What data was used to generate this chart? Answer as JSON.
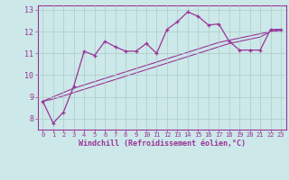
{
  "x_data": [
    0,
    1,
    2,
    3,
    4,
    5,
    6,
    7,
    8,
    9,
    10,
    11,
    12,
    13,
    14,
    15,
    16,
    17,
    18,
    19,
    20,
    21,
    22,
    23
  ],
  "y_main": [
    8.8,
    7.8,
    8.3,
    9.5,
    11.1,
    10.9,
    11.55,
    11.3,
    11.1,
    11.1,
    11.45,
    11.0,
    12.1,
    12.45,
    12.9,
    12.7,
    12.3,
    12.35,
    11.55,
    11.15,
    11.15,
    11.15,
    12.1,
    12.1
  ],
  "y_line1": [
    8.8,
    9.0,
    9.2,
    9.4,
    9.55,
    9.7,
    9.85,
    10.0,
    10.15,
    10.3,
    10.45,
    10.6,
    10.75,
    10.9,
    11.05,
    11.2,
    11.35,
    11.5,
    11.6,
    11.7,
    11.8,
    11.9,
    12.0,
    12.1
  ],
  "y_line2": [
    8.8,
    8.9,
    9.05,
    9.2,
    9.35,
    9.5,
    9.65,
    9.8,
    9.95,
    10.1,
    10.25,
    10.4,
    10.55,
    10.7,
    10.85,
    11.0,
    11.15,
    11.3,
    11.45,
    11.55,
    11.65,
    11.75,
    12.0,
    12.05
  ],
  "color": "#993399",
  "bg_color": "#cce8e8",
  "grid_color": "#aacccc",
  "xlabel": "Windchill (Refroidissement éolien,°C)",
  "ylim": [
    7.5,
    13.2
  ],
  "xlim": [
    -0.5,
    23.5
  ],
  "yticks": [
    8,
    9,
    10,
    11,
    12,
    13
  ],
  "xticks": [
    0,
    1,
    2,
    3,
    4,
    5,
    6,
    7,
    8,
    9,
    10,
    11,
    12,
    13,
    14,
    15,
    16,
    17,
    18,
    19,
    20,
    21,
    22,
    23
  ]
}
